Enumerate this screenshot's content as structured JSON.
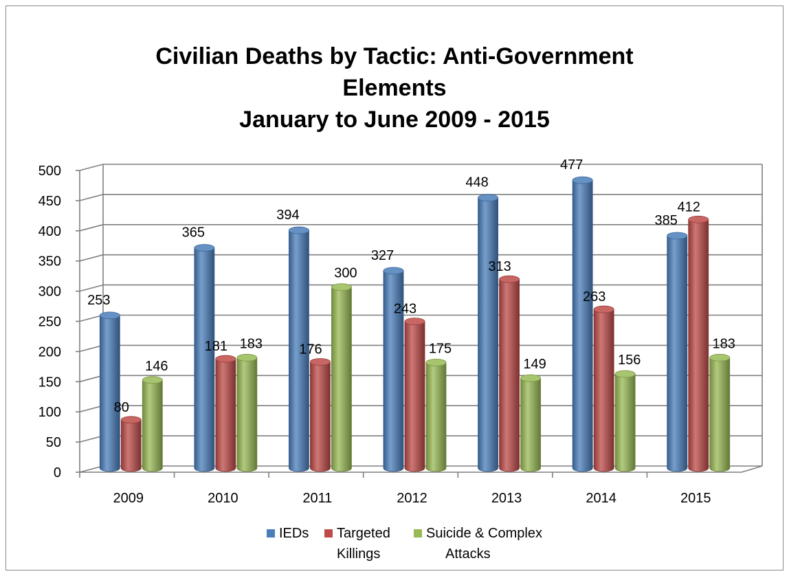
{
  "chart_data": {
    "type": "bar",
    "title": "Civilian Deaths by Tactic: Anti-Government Elements January to June 2009 - 2015",
    "title_lines": [
      "Civilian Deaths by Tactic: Anti-Government",
      "Elements",
      "January to June 2009 - 2015"
    ],
    "categories": [
      "2009",
      "2010",
      "2011",
      "2012",
      "2013",
      "2014",
      "2015"
    ],
    "series": [
      {
        "name": "IEDs",
        "color": "#4a7ebb",
        "values": [
          253,
          365,
          394,
          327,
          448,
          477,
          385
        ]
      },
      {
        "name": "Targeted Killings",
        "color": "#be4b48",
        "values": [
          80,
          181,
          176,
          243,
          313,
          263,
          412
        ]
      },
      {
        "name": "Suicide & Complex Attacks",
        "color": "#98b954",
        "values": [
          146,
          183,
          300,
          175,
          149,
          156,
          183
        ]
      }
    ],
    "legend_labels": [
      [
        "IEDs"
      ],
      [
        "Targeted",
        "Killings"
      ],
      [
        "Suicide & Complex",
        "Attacks"
      ]
    ],
    "yticks": [
      "0",
      "50",
      "100",
      "150",
      "200",
      "250",
      "300",
      "350",
      "400",
      "450",
      "500"
    ],
    "ylim": [
      0,
      500
    ],
    "grid": true,
    "legend_position": "bottom",
    "style": "3d-cylinder"
  }
}
